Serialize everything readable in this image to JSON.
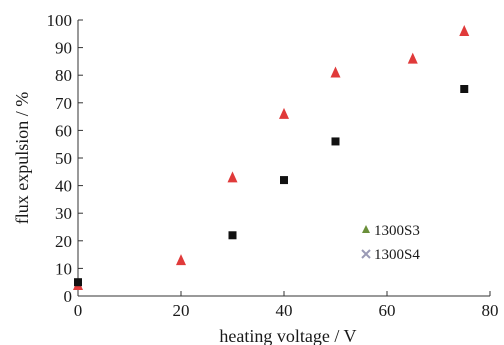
{
  "chart_data": {
    "type": "scatter",
    "title": "",
    "xlabel": "heating voltage / V",
    "ylabel": "flux expulsion / %",
    "xlim": [
      0,
      80
    ],
    "ylim": [
      0,
      100
    ],
    "xticks": [
      0,
      20,
      40,
      60,
      80
    ],
    "yticks": [
      0,
      10,
      20,
      30,
      40,
      50,
      60,
      70,
      80,
      90,
      100
    ],
    "grid": false,
    "legend_position": "lower-right",
    "series": [
      {
        "name": "1300S3",
        "marker": "triangle",
        "color": "#e03a3a",
        "legend_color": "#6a8f3a",
        "x": [
          0,
          20,
          30,
          40,
          50,
          65,
          75
        ],
        "y": [
          4,
          13,
          43,
          66,
          81,
          86,
          96
        ]
      },
      {
        "name": "1300S4",
        "marker": "square",
        "color": "#111111",
        "legend_color": "#9a9ab5",
        "x": [
          0,
          30,
          40,
          50,
          75
        ],
        "y": [
          5,
          22,
          42,
          56,
          75
        ]
      }
    ]
  }
}
